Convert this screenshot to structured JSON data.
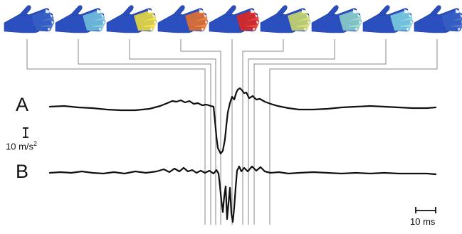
{
  "row_labels": {
    "a": "A",
    "b": "B"
  },
  "vertical_scale": {
    "value": "10 m/s",
    "exponent": "2"
  },
  "horizontal_scale": {
    "value": "10 ms"
  },
  "colormap": {
    "low": "#2b4fbf",
    "mid": "#7fd3e0",
    "high": "#f2e23a",
    "peak": "#e8261a"
  },
  "hand_frames": [
    {
      "intensity": 0.05
    },
    {
      "intensity": 0.35
    },
    {
      "intensity": 0.75
    },
    {
      "intensity": 0.9
    },
    {
      "intensity": 1.0
    },
    {
      "intensity": 0.65
    },
    {
      "intensity": 0.45
    },
    {
      "intensity": 0.4
    },
    {
      "intensity": 0.05
    }
  ]
}
